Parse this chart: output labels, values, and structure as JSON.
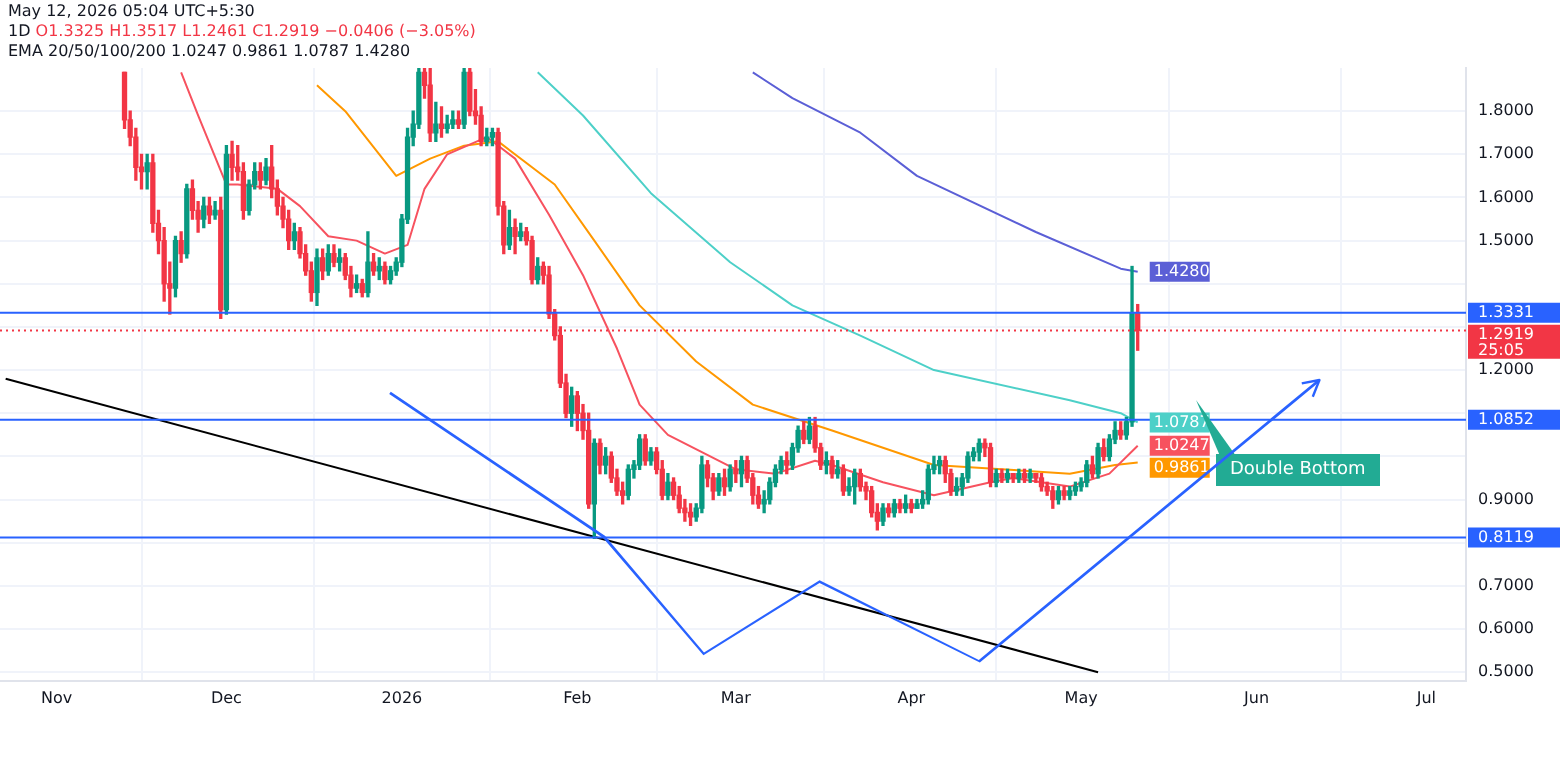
{
  "chart_data": {
    "type": "candlestick",
    "annotations": [
      "May 12, 2026 05:04 UTC+5:30",
      "1D",
      "O1.3325 H1.3517 L1.2461 C1.2919 −0.0406 (−3.05%)",
      "EMA 20/50/100/200 1.0247 0.9861 1.0787 1.4280",
      "25:05",
      "Double Bottom"
    ],
    "x": [
      "2025-11-13",
      "2025-11-14",
      "2025-11-15",
      "2025-11-16",
      "2025-11-17",
      "2025-11-18",
      "2025-11-19",
      "2025-11-20",
      "2025-11-21",
      "2025-11-22",
      "2025-11-23",
      "2025-11-24",
      "2025-11-25",
      "2025-11-26",
      "2025-11-27",
      "2025-11-28",
      "2025-11-29",
      "2025-11-30",
      "2025-12-01",
      "2025-12-02",
      "2025-12-03",
      "2025-12-04",
      "2025-12-05",
      "2025-12-06",
      "2025-12-07",
      "2025-12-08",
      "2025-12-09",
      "2025-12-10",
      "2025-12-11",
      "2025-12-12",
      "2025-12-13",
      "2025-12-14",
      "2025-12-15",
      "2025-12-16",
      "2025-12-17",
      "2025-12-18",
      "2025-12-19",
      "2025-12-20",
      "2025-12-21",
      "2025-12-22",
      "2025-12-23",
      "2025-12-24",
      "2025-12-25",
      "2025-12-26",
      "2025-12-27",
      "2025-12-28",
      "2025-12-29",
      "2025-12-30",
      "2025-12-31",
      "2026-01-01",
      "2026-01-02",
      "2026-01-03",
      "2026-01-04",
      "2026-01-05",
      "2026-01-06",
      "2026-01-07",
      "2026-01-08",
      "2026-01-09",
      "2026-01-10",
      "2026-01-11",
      "2026-01-12",
      "2026-01-13",
      "2026-01-14",
      "2026-01-15",
      "2026-01-16",
      "2026-01-17",
      "2026-01-18",
      "2026-01-19",
      "2026-01-20",
      "2026-01-21",
      "2026-01-22",
      "2026-01-23",
      "2026-01-24",
      "2026-01-25",
      "2026-01-26",
      "2026-01-27",
      "2026-01-28",
      "2026-01-29",
      "2026-01-30",
      "2026-01-31",
      "2026-02-01",
      "2026-02-02",
      "2026-02-03",
      "2026-02-04",
      "2026-02-05",
      "2026-02-06",
      "2026-02-07",
      "2026-02-08",
      "2026-02-09",
      "2026-02-10",
      "2026-02-11",
      "2026-02-12",
      "2026-02-13",
      "2026-02-14",
      "2026-02-15",
      "2026-02-16",
      "2026-02-17",
      "2026-02-18",
      "2026-02-19",
      "2026-02-20",
      "2026-02-21",
      "2026-02-22",
      "2026-02-23",
      "2026-02-24",
      "2026-02-25",
      "2026-02-26",
      "2026-02-27",
      "2026-02-28",
      "2026-03-01",
      "2026-03-02",
      "2026-03-03",
      "2026-03-04",
      "2026-03-05",
      "2026-03-06",
      "2026-03-07",
      "2026-03-08",
      "2026-03-09",
      "2026-03-10",
      "2026-03-11",
      "2026-03-12",
      "2026-03-13",
      "2026-03-14",
      "2026-03-15",
      "2026-03-16",
      "2026-03-17",
      "2026-03-18",
      "2026-03-19",
      "2026-03-20",
      "2026-03-21",
      "2026-03-22",
      "2026-03-23",
      "2026-03-24",
      "2026-03-25",
      "2026-03-26",
      "2026-03-27",
      "2026-03-28",
      "2026-03-29",
      "2026-03-30",
      "2026-03-31",
      "2026-04-01",
      "2026-04-02",
      "2026-04-03",
      "2026-04-04",
      "2026-04-05",
      "2026-04-06",
      "2026-04-07",
      "2026-04-08",
      "2026-04-09",
      "2026-04-10",
      "2026-04-11",
      "2026-04-12",
      "2026-04-13",
      "2026-04-14",
      "2026-04-15",
      "2026-04-16",
      "2026-04-17",
      "2026-04-18",
      "2026-04-19",
      "2026-04-20",
      "2026-04-21",
      "2026-04-22",
      "2026-04-23",
      "2026-04-24",
      "2026-04-25",
      "2026-04-26",
      "2026-04-27",
      "2026-04-28",
      "2026-04-29",
      "2026-04-30",
      "2026-05-01",
      "2026-05-02",
      "2026-05-03",
      "2026-05-04",
      "2026-05-05",
      "2026-05-06",
      "2026-05-07",
      "2026-05-08",
      "2026-05-09",
      "2026-05-10",
      "2026-05-11"
    ],
    "ohlc": [
      [
        1.89,
        1.89,
        1.76,
        1.78
      ],
      [
        1.78,
        1.8,
        1.72,
        1.74
      ],
      [
        1.74,
        1.76,
        1.64,
        1.67
      ],
      [
        1.67,
        1.7,
        1.62,
        1.66
      ],
      [
        1.66,
        1.7,
        1.62,
        1.68
      ],
      [
        1.68,
        1.7,
        1.52,
        1.54
      ],
      [
        1.54,
        1.57,
        1.47,
        1.5
      ],
      [
        1.5,
        1.53,
        1.36,
        1.4
      ],
      [
        1.4,
        1.45,
        1.33,
        1.39
      ],
      [
        1.39,
        1.51,
        1.37,
        1.5
      ],
      [
        1.5,
        1.52,
        1.45,
        1.47
      ],
      [
        1.47,
        1.63,
        1.46,
        1.62
      ],
      [
        1.62,
        1.64,
        1.55,
        1.57
      ],
      [
        1.57,
        1.59,
        1.52,
        1.55
      ],
      [
        1.55,
        1.6,
        1.53,
        1.58
      ],
      [
        1.58,
        1.6,
        1.54,
        1.56
      ],
      [
        1.56,
        1.59,
        1.55,
        1.57
      ],
      [
        1.57,
        1.6,
        1.32,
        1.34
      ],
      [
        1.34,
        1.72,
        1.33,
        1.7
      ],
      [
        1.7,
        1.73,
        1.64,
        1.67
      ],
      [
        1.67,
        1.72,
        1.64,
        1.66
      ],
      [
        1.66,
        1.68,
        1.55,
        1.57
      ],
      [
        1.57,
        1.64,
        1.56,
        1.63
      ],
      [
        1.63,
        1.68,
        1.62,
        1.66
      ],
      [
        1.66,
        1.68,
        1.62,
        1.64
      ],
      [
        1.64,
        1.69,
        1.63,
        1.67
      ],
      [
        1.67,
        1.72,
        1.6,
        1.62
      ],
      [
        1.62,
        1.64,
        1.56,
        1.58
      ],
      [
        1.58,
        1.6,
        1.53,
        1.55
      ],
      [
        1.55,
        1.57,
        1.48,
        1.5
      ],
      [
        1.5,
        1.54,
        1.48,
        1.52
      ],
      [
        1.52,
        1.53,
        1.46,
        1.47
      ],
      [
        1.47,
        1.49,
        1.42,
        1.43
      ],
      [
        1.43,
        1.45,
        1.36,
        1.38
      ],
      [
        1.38,
        1.48,
        1.35,
        1.46
      ],
      [
        1.46,
        1.48,
        1.41,
        1.43
      ],
      [
        1.43,
        1.49,
        1.42,
        1.47
      ],
      [
        1.47,
        1.49,
        1.44,
        1.45
      ],
      [
        1.45,
        1.48,
        1.43,
        1.46
      ],
      [
        1.46,
        1.47,
        1.41,
        1.42
      ],
      [
        1.42,
        1.44,
        1.37,
        1.39
      ],
      [
        1.39,
        1.42,
        1.38,
        1.4
      ],
      [
        1.4,
        1.41,
        1.37,
        1.38
      ],
      [
        1.38,
        1.52,
        1.37,
        1.45
      ],
      [
        1.45,
        1.47,
        1.42,
        1.43
      ],
      [
        1.43,
        1.46,
        1.41,
        1.44
      ],
      [
        1.44,
        1.45,
        1.4,
        1.41
      ],
      [
        1.41,
        1.44,
        1.4,
        1.43
      ],
      [
        1.43,
        1.46,
        1.42,
        1.45
      ],
      [
        1.45,
        1.56,
        1.44,
        1.55
      ],
      [
        1.55,
        1.76,
        1.54,
        1.74
      ],
      [
        1.74,
        1.8,
        1.72,
        1.77
      ],
      [
        1.77,
        1.9,
        1.76,
        1.89
      ],
      [
        1.89,
        1.9,
        1.83,
        1.86
      ],
      [
        1.86,
        1.9,
        1.73,
        1.75
      ],
      [
        1.75,
        1.82,
        1.73,
        1.77
      ],
      [
        1.77,
        1.81,
        1.74,
        1.76
      ],
      [
        1.76,
        1.79,
        1.75,
        1.77
      ],
      [
        1.77,
        1.8,
        1.76,
        1.78
      ],
      [
        1.78,
        1.8,
        1.76,
        1.77
      ],
      [
        1.77,
        1.9,
        1.76,
        1.89
      ],
      [
        1.89,
        1.9,
        1.79,
        1.8
      ],
      [
        1.8,
        1.85,
        1.77,
        1.79
      ],
      [
        1.79,
        1.81,
        1.72,
        1.73
      ],
      [
        1.73,
        1.76,
        1.72,
        1.74
      ],
      [
        1.74,
        1.76,
        1.72,
        1.75
      ],
      [
        1.75,
        1.76,
        1.56,
        1.58
      ],
      [
        1.58,
        1.59,
        1.47,
        1.49
      ],
      [
        1.49,
        1.57,
        1.48,
        1.53
      ],
      [
        1.53,
        1.55,
        1.47,
        1.51
      ],
      [
        1.51,
        1.54,
        1.5,
        1.52
      ],
      [
        1.52,
        1.53,
        1.49,
        1.5
      ],
      [
        1.5,
        1.51,
        1.4,
        1.41
      ],
      [
        1.41,
        1.46,
        1.4,
        1.44
      ],
      [
        1.44,
        1.45,
        1.4,
        1.42
      ],
      [
        1.42,
        1.44,
        1.32,
        1.33
      ],
      [
        1.33,
        1.34,
        1.27,
        1.28
      ],
      [
        1.28,
        1.3,
        1.16,
        1.17
      ],
      [
        1.17,
        1.19,
        1.09,
        1.1
      ],
      [
        1.1,
        1.16,
        1.07,
        1.14
      ],
      [
        1.14,
        1.15,
        1.06,
        1.1
      ],
      [
        1.1,
        1.12,
        1.04,
        1.06
      ],
      [
        1.06,
        1.1,
        0.88,
        0.89
      ],
      [
        0.89,
        1.04,
        0.81,
        1.03
      ],
      [
        1.03,
        1.04,
        0.96,
        0.98
      ],
      [
        0.98,
        1.02,
        0.96,
        1.0
      ],
      [
        1.0,
        1.01,
        0.94,
        0.95
      ],
      [
        0.95,
        0.97,
        0.91,
        0.92
      ],
      [
        0.92,
        0.94,
        0.89,
        0.91
      ],
      [
        0.91,
        0.98,
        0.9,
        0.97
      ],
      [
        0.97,
        0.99,
        0.95,
        0.98
      ],
      [
        0.98,
        1.05,
        0.97,
        1.04
      ],
      [
        1.04,
        1.05,
        0.98,
        0.99
      ],
      [
        0.99,
        1.02,
        0.98,
        1.01
      ],
      [
        1.01,
        1.02,
        0.96,
        0.97
      ],
      [
        0.97,
        0.99,
        0.9,
        0.91
      ],
      [
        0.91,
        0.96,
        0.9,
        0.94
      ],
      [
        0.94,
        0.95,
        0.9,
        0.91
      ],
      [
        0.91,
        0.93,
        0.87,
        0.88
      ],
      [
        0.88,
        0.9,
        0.85,
        0.87
      ],
      [
        0.87,
        0.89,
        0.84,
        0.86
      ],
      [
        0.86,
        0.89,
        0.85,
        0.88
      ],
      [
        0.88,
        1.0,
        0.87,
        0.98
      ],
      [
        0.98,
        0.99,
        0.93,
        0.95
      ],
      [
        0.95,
        0.96,
        0.9,
        0.92
      ],
      [
        0.92,
        0.96,
        0.91,
        0.95
      ],
      [
        0.95,
        0.97,
        0.91,
        0.93
      ],
      [
        0.93,
        0.98,
        0.92,
        0.97
      ],
      [
        0.97,
        0.99,
        0.94,
        0.96
      ],
      [
        0.96,
        1.0,
        0.93,
        0.99
      ],
      [
        0.99,
        1.0,
        0.94,
        0.95
      ],
      [
        0.95,
        0.96,
        0.89,
        0.91
      ],
      [
        0.91,
        0.93,
        0.88,
        0.89
      ],
      [
        0.89,
        0.92,
        0.87,
        0.9
      ],
      [
        0.9,
        0.95,
        0.89,
        0.94
      ],
      [
        0.94,
        0.98,
        0.93,
        0.97
      ],
      [
        0.97,
        1.0,
        0.96,
        0.99
      ],
      [
        0.99,
        1.01,
        0.96,
        0.98
      ],
      [
        0.98,
        1.03,
        0.97,
        1.02
      ],
      [
        1.02,
        1.07,
        1.01,
        1.06
      ],
      [
        1.06,
        1.08,
        1.03,
        1.04
      ],
      [
        1.04,
        1.09,
        1.03,
        1.07
      ],
      [
        1.07,
        1.09,
        1.01,
        1.02
      ],
      [
        1.02,
        1.03,
        0.97,
        0.98
      ],
      [
        0.98,
        1.01,
        0.96,
        0.99
      ],
      [
        0.99,
        1.0,
        0.95,
        0.96
      ],
      [
        0.96,
        0.99,
        0.95,
        0.97
      ],
      [
        0.97,
        0.98,
        0.91,
        0.92
      ],
      [
        0.92,
        0.95,
        0.91,
        0.93
      ],
      [
        0.93,
        0.97,
        0.89,
        0.96
      ],
      [
        0.96,
        0.97,
        0.92,
        0.93
      ],
      [
        0.93,
        0.94,
        0.9,
        0.92
      ],
      [
        0.92,
        0.93,
        0.86,
        0.87
      ],
      [
        0.87,
        0.89,
        0.83,
        0.85
      ],
      [
        0.85,
        0.89,
        0.84,
        0.88
      ],
      [
        0.88,
        0.89,
        0.86,
        0.87
      ],
      [
        0.87,
        0.9,
        0.86,
        0.89
      ],
      [
        0.89,
        0.9,
        0.87,
        0.88
      ],
      [
        0.88,
        0.91,
        0.87,
        0.89
      ],
      [
        0.89,
        0.9,
        0.87,
        0.88
      ],
      [
        0.88,
        0.9,
        0.88,
        0.89
      ],
      [
        0.89,
        0.92,
        0.88,
        0.9
      ],
      [
        0.9,
        0.98,
        0.89,
        0.97
      ],
      [
        0.97,
        1.0,
        0.96,
        0.98
      ],
      [
        0.98,
        1.0,
        0.96,
        0.99
      ],
      [
        0.99,
        1.0,
        0.94,
        0.96
      ],
      [
        0.96,
        0.97,
        0.91,
        0.92
      ],
      [
        0.92,
        0.95,
        0.91,
        0.93
      ],
      [
        0.93,
        0.96,
        0.91,
        0.95
      ],
      [
        0.95,
        1.01,
        0.94,
        1.0
      ],
      [
        1.0,
        1.02,
        0.99,
        1.01
      ],
      [
        1.01,
        1.04,
        0.99,
        1.03
      ],
      [
        1.03,
        1.04,
        1.0,
        1.02
      ],
      [
        1.02,
        1.03,
        0.93,
        0.94
      ],
      [
        0.94,
        0.97,
        0.93,
        0.96
      ],
      [
        0.96,
        0.97,
        0.94,
        0.95
      ],
      [
        0.95,
        0.97,
        0.94,
        0.96
      ],
      [
        0.96,
        0.96,
        0.94,
        0.95
      ],
      [
        0.95,
        0.97,
        0.94,
        0.96
      ],
      [
        0.96,
        0.97,
        0.94,
        0.95
      ],
      [
        0.95,
        0.97,
        0.94,
        0.96
      ],
      [
        0.96,
        0.96,
        0.94,
        0.95
      ],
      [
        0.95,
        0.96,
        0.92,
        0.93
      ],
      [
        0.93,
        0.94,
        0.91,
        0.92
      ],
      [
        0.92,
        0.93,
        0.88,
        0.9
      ],
      [
        0.9,
        0.93,
        0.89,
        0.92
      ],
      [
        0.92,
        0.93,
        0.9,
        0.91
      ],
      [
        0.91,
        0.93,
        0.9,
        0.92
      ],
      [
        0.92,
        0.94,
        0.91,
        0.93
      ],
      [
        0.93,
        0.95,
        0.92,
        0.94
      ],
      [
        0.94,
        0.99,
        0.93,
        0.98
      ],
      [
        0.98,
        1.0,
        0.95,
        0.96
      ],
      [
        0.96,
        1.03,
        0.95,
        1.02
      ],
      [
        1.02,
        1.04,
        0.99,
        1.0
      ],
      [
        1.0,
        1.05,
        0.99,
        1.04
      ],
      [
        1.04,
        1.08,
        1.03,
        1.06
      ],
      [
        1.06,
        1.08,
        1.04,
        1.05
      ],
      [
        1.05,
        1.09,
        1.04,
        1.08
      ],
      [
        1.08,
        1.44,
        1.07,
        1.3325
      ],
      [
        1.3325,
        1.3517,
        1.2461,
        1.2919
      ]
    ],
    "series": [
      {
        "type": "line",
        "color": "#f7525f",
        "x": [
          "2025-11-23",
          "2025-11-26",
          "2025-12-01",
          "2025-12-03",
          "2025-12-10",
          "2025-12-14",
          "2025-12-19",
          "2025-12-24",
          "2025-12-29",
          "2026-01-02",
          "2026-01-05",
          "2026-01-09",
          "2026-01-16",
          "2026-01-21",
          "2026-01-27",
          "2026-02-02",
          "2026-02-08",
          "2026-02-12",
          "2026-02-17",
          "2026-02-23",
          "2026-03-01",
          "2026-03-08",
          "2026-03-15",
          "2026-03-18",
          "2026-03-27",
          "2026-04-05",
          "2026-04-15",
          "2026-04-19",
          "2026-04-29",
          "2026-05-06",
          "2026-05-11"
        ],
        "values": [
          1.89,
          1.79,
          1.63,
          1.63,
          1.62,
          1.58,
          1.51,
          1.5,
          1.47,
          1.49,
          1.62,
          1.7,
          1.74,
          1.69,
          1.56,
          1.42,
          1.25,
          1.12,
          1.05,
          1.01,
          0.97,
          0.96,
          0.99,
          0.98,
          0.94,
          0.91,
          0.94,
          0.95,
          0.93,
          0.96,
          1.0247
        ],
        "value_labels": [
          null,
          null,
          null,
          null,
          null,
          null,
          null,
          null,
          null,
          null,
          null,
          null,
          null,
          null,
          null,
          null,
          null,
          null,
          null,
          null,
          null,
          null,
          null,
          null,
          null,
          null,
          null,
          null,
          null,
          null,
          "1.0247"
        ]
      },
      {
        "type": "line",
        "color": "#ff9800",
        "x": [
          "2025-12-17",
          "2025-12-22",
          "2025-12-31",
          "2026-01-06",
          "2026-01-12",
          "2026-01-18",
          "2026-01-28",
          "2026-02-04",
          "2026-02-12",
          "2026-02-22",
          "2026-03-04",
          "2026-03-18",
          "2026-04-05",
          "2026-04-17",
          "2026-04-29",
          "2026-05-07",
          "2026-05-11"
        ],
        "values": [
          1.86,
          1.8,
          1.65,
          1.69,
          1.72,
          1.73,
          1.63,
          1.5,
          1.35,
          1.22,
          1.12,
          1.06,
          0.98,
          0.97,
          0.96,
          0.98,
          0.9861
        ],
        "value_labels": [
          null,
          null,
          null,
          null,
          null,
          null,
          null,
          null,
          null,
          null,
          null,
          null,
          null,
          null,
          null,
          null,
          "0.9861"
        ]
      },
      {
        "type": "line",
        "color": "#4dd0c8",
        "x": [
          "2026-01-25",
          "2026-02-02",
          "2026-02-14",
          "2026-02-28",
          "2026-03-11",
          "2026-03-23",
          "2026-04-05",
          "2026-04-29",
          "2026-05-08",
          "2026-05-11"
        ],
        "values": [
          1.89,
          1.79,
          1.61,
          1.45,
          1.35,
          1.28,
          1.2,
          1.13,
          1.1,
          1.0787
        ],
        "value_labels": [
          null,
          null,
          null,
          null,
          null,
          null,
          null,
          null,
          null,
          "1.0787"
        ]
      },
      {
        "type": "line",
        "color": "#5b5fd6",
        "x": [
          "2026-03-04",
          "2026-03-11",
          "2026-03-23",
          "2026-04-02",
          "2026-04-23",
          "2026-05-08",
          "2026-05-11"
        ],
        "values": [
          1.89,
          1.83,
          1.75,
          1.65,
          1.52,
          1.435,
          1.428
        ],
        "value_labels": [
          null,
          null,
          null,
          null,
          null,
          null,
          "1.4280"
        ]
      },
      {
        "type": "line",
        "color": "#000000",
        "x": [
          "2025-10-23",
          "2026-05-04"
        ],
        "values": [
          1.18,
          0.5
        ]
      }
    ],
    "xlim": [
      "2025-10-22",
      "2026-07-08"
    ],
    "xticks": [
      {
        "value": "2025-11-01",
        "label": "Nov"
      },
      {
        "value": "2025-12-01",
        "label": "Dec"
      },
      {
        "value": "2026-01-01",
        "label": "2026"
      },
      {
        "value": "2026-02-01",
        "label": "Feb"
      },
      {
        "value": "2026-03-01",
        "label": "Mar"
      },
      {
        "value": "2026-04-01",
        "label": "Apr"
      },
      {
        "value": "2026-05-01",
        "label": "May"
      },
      {
        "value": "2026-06-01",
        "label": "Jun"
      },
      {
        "value": "2026-07-01",
        "label": "Jul"
      }
    ],
    "ylim": [
      0.48,
      1.9
    ],
    "yticks": [
      {
        "value": 0.5,
        "label": "0.5000"
      },
      {
        "value": 0.6,
        "label": "0.6000"
      },
      {
        "value": 0.7,
        "label": "0.7000"
      },
      {
        "value": 0.8,
        "label": null
      },
      {
        "value": 0.9,
        "label": "0.9000"
      },
      {
        "value": 1.0,
        "label": null
      },
      {
        "value": 1.1,
        "label": null
      },
      {
        "value": 1.2,
        "label": "1.2000"
      },
      {
        "value": 1.3,
        "label": null
      },
      {
        "value": 1.4,
        "label": null
      },
      {
        "value": 1.5,
        "label": "1.5000"
      },
      {
        "value": 1.6,
        "label": "1.6000"
      },
      {
        "value": 1.7,
        "label": "1.7000"
      },
      {
        "value": 1.8,
        "label": "1.8000"
      }
    ],
    "ref_lines": [
      {
        "axis": "y",
        "value": 1.3331,
        "label": "1.3331",
        "color": "#2962ff"
      },
      {
        "axis": "y",
        "value": 1.2919,
        "label": "1.2919",
        "color": "#f23645",
        "line_style": "dotted"
      },
      {
        "axis": "y",
        "value": 1.0852,
        "label": "1.0852",
        "color": "#2962ff"
      },
      {
        "axis": "y",
        "value": 0.8119,
        "label": "0.8119",
        "color": "#2962ff"
      }
    ],
    "grid": true
  }
}
